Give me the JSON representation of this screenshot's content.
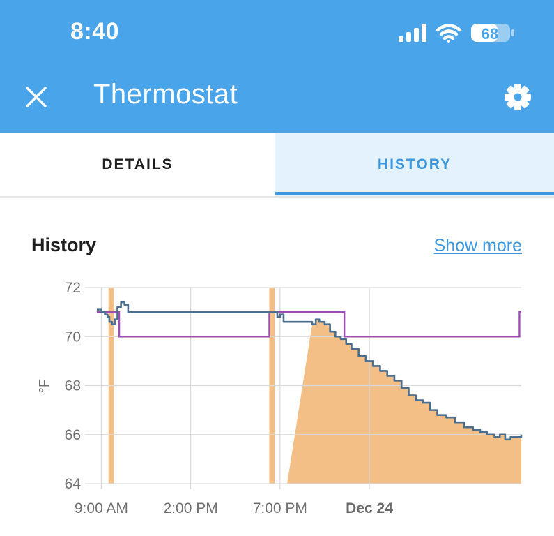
{
  "status_bar": {
    "time": "8:40",
    "battery": "68"
  },
  "header": {
    "title": "Thermostat"
  },
  "tabs": {
    "details": "DETAILS",
    "history": "HISTORY"
  },
  "card": {
    "title": "History",
    "show_more": "Show more"
  },
  "colors": {
    "appbar": "#4aa4ea",
    "accent": "#3b97e0",
    "current_temperature": "#4b6d8e",
    "target_temperature": "#9b4fb2",
    "heating": "#f3bf86"
  },
  "icons": {
    "close": "close-icon",
    "settings": "gear-icon",
    "signal": "signal-icon",
    "wifi": "wifi-icon",
    "battery": "battery-icon"
  },
  "chart_data": {
    "type": "line",
    "xlabel": "",
    "ylabel": "°F",
    "ylim": [
      64,
      72
    ],
    "yticks": [
      64,
      66,
      68,
      70,
      72
    ],
    "xlim": [
      8.75,
      32.5
    ],
    "xticks": [
      {
        "x": 9,
        "label": "9:00 AM",
        "bold": false
      },
      {
        "x": 14,
        "label": "2:00 PM",
        "bold": false
      },
      {
        "x": 19,
        "label": "7:00 PM",
        "bold": false
      },
      {
        "x": 24,
        "label": "Dec 24",
        "bold": true
      }
    ],
    "grid": true,
    "series": [
      {
        "kind": "step",
        "points": [
          [
            8.75,
            71.1
          ],
          [
            9.0,
            71.0
          ],
          [
            9.2,
            70.9
          ],
          [
            9.35,
            70.8
          ],
          [
            9.45,
            70.6
          ],
          [
            9.6,
            70.5
          ],
          [
            9.75,
            70.7
          ],
          [
            9.9,
            71.2
          ],
          [
            10.1,
            71.4
          ],
          [
            10.3,
            71.3
          ],
          [
            10.5,
            71.0
          ],
          [
            18.7,
            71.0
          ],
          [
            18.85,
            70.8
          ],
          [
            19.0,
            70.9
          ],
          [
            19.2,
            70.6
          ],
          [
            20.8,
            70.5
          ],
          [
            21.0,
            70.7
          ],
          [
            21.2,
            70.6
          ],
          [
            21.5,
            70.5
          ],
          [
            21.8,
            70.2
          ],
          [
            22.1,
            70.0
          ],
          [
            22.4,
            69.9
          ],
          [
            22.7,
            69.7
          ],
          [
            23.0,
            69.5
          ],
          [
            23.4,
            69.2
          ],
          [
            23.8,
            69.0
          ],
          [
            24.2,
            68.8
          ],
          [
            24.6,
            68.6
          ],
          [
            25.0,
            68.4
          ],
          [
            25.4,
            68.2
          ],
          [
            25.8,
            67.9
          ],
          [
            26.2,
            67.6
          ],
          [
            26.6,
            67.4
          ],
          [
            27.0,
            67.3
          ],
          [
            27.4,
            67.0
          ],
          [
            27.8,
            66.8
          ],
          [
            28.3,
            66.7
          ],
          [
            28.8,
            66.5
          ],
          [
            29.3,
            66.3
          ],
          [
            29.8,
            66.2
          ],
          [
            30.2,
            66.1
          ],
          [
            30.6,
            66.0
          ],
          [
            31.0,
            65.9
          ],
          [
            31.3,
            66.0
          ],
          [
            31.6,
            65.8
          ],
          [
            31.9,
            65.9
          ],
          [
            32.2,
            65.9
          ],
          [
            32.5,
            66.0
          ]
        ]
      },
      {
        "kind": "step",
        "points": [
          [
            8.75,
            71.0
          ],
          [
            10.0,
            71.0
          ],
          [
            10.0,
            70.0
          ],
          [
            18.4,
            70.0
          ],
          [
            18.4,
            71.0
          ],
          [
            22.6,
            71.0
          ],
          [
            22.6,
            70.0
          ],
          [
            32.4,
            70.0
          ],
          [
            32.4,
            71.0
          ],
          [
            32.5,
            71.0
          ]
        ]
      }
    ],
    "heating_periods": [
      [
        9.4,
        9.7
      ],
      [
        18.4,
        18.7
      ],
      [
        19.4,
        32.5
      ]
    ]
  }
}
